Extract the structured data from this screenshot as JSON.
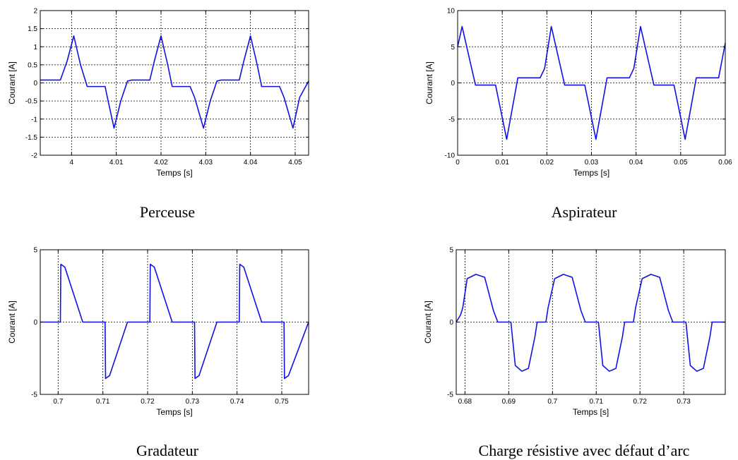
{
  "chart_data": [
    {
      "type": "line",
      "caption": "Perceuse",
      "xlabel": "Temps [s]",
      "ylabel": "Courant [A]",
      "xlim": [
        3.993,
        4.053
      ],
      "ylim": [
        -2,
        2
      ],
      "xticks": [
        4,
        4.01,
        4.02,
        4.03,
        4.04,
        4.05
      ],
      "xtick_labels": [
        "4",
        "4.01",
        "4.02",
        "4.03",
        "4.04",
        "4.05"
      ],
      "yticks": [
        -2,
        -1.5,
        -1,
        -0.5,
        0,
        0.5,
        1,
        1.5,
        2
      ],
      "ytick_labels": [
        "-2",
        "-1.5",
        "-1",
        "-0.5",
        "0",
        "0.5",
        "1",
        "1.5",
        "2"
      ],
      "grid": true,
      "color": "#1010e8",
      "series": [
        {
          "x": [
            3.993,
            3.9975,
            3.999,
            4.0005,
            4.002,
            4.0035,
            4.0075,
            4.008,
            4.0095,
            4.011,
            4.0125,
            4.0135,
            4.0175,
            4.0185,
            4.02,
            4.0215,
            4.0225,
            4.0265,
            4.0275,
            4.0295,
            4.031,
            4.0325,
            4.0335,
            4.0375,
            4.0385,
            4.04,
            4.0415,
            4.0425,
            4.0465,
            4.0475,
            4.0495,
            4.051,
            4.053
          ],
          "y": [
            0.08,
            0.08,
            0.6,
            1.3,
            0.5,
            -0.1,
            -0.1,
            -0.4,
            -1.25,
            -0.5,
            0.05,
            0.08,
            0.08,
            0.6,
            1.3,
            0.5,
            -0.1,
            -0.1,
            -0.4,
            -1.25,
            -0.5,
            0.05,
            0.08,
            0.08,
            0.6,
            1.3,
            0.5,
            -0.1,
            -0.1,
            -0.4,
            -1.25,
            -0.4,
            0.05
          ]
        }
      ]
    },
    {
      "type": "line",
      "caption": "Aspirateur",
      "xlabel": "Temps [s]",
      "ylabel": "Courant [A]",
      "xlim": [
        0,
        0.06
      ],
      "ylim": [
        -10,
        10
      ],
      "xticks": [
        0,
        0.01,
        0.02,
        0.03,
        0.04,
        0.05,
        0.06
      ],
      "xtick_labels": [
        "0",
        "0.01",
        "0.02",
        "0.03",
        "0.04",
        "0.05",
        "0.06"
      ],
      "yticks": [
        -10,
        -5,
        0,
        5,
        10
      ],
      "ytick_labels": [
        "-10",
        "-5",
        "0",
        "5",
        "10"
      ],
      "grid": true,
      "color": "#1010e8",
      "series": [
        {
          "x": [
            0,
            0.001,
            0.004,
            0.0045,
            0.0075,
            0.0085,
            0.011,
            0.0135,
            0.0145,
            0.0185,
            0.0195,
            0.021,
            0.024,
            0.0245,
            0.0275,
            0.0285,
            0.031,
            0.0335,
            0.0345,
            0.0385,
            0.0395,
            0.041,
            0.044,
            0.0445,
            0.0475,
            0.0485,
            0.051,
            0.0535,
            0.0545,
            0.0585,
            0.06
          ],
          "y": [
            5,
            7.8,
            -0.3,
            -0.3,
            -0.3,
            -0.3,
            -7.8,
            0.7,
            0.7,
            0.7,
            2,
            7.8,
            -0.3,
            -0.3,
            -0.3,
            -0.3,
            -7.8,
            0.7,
            0.7,
            0.7,
            2,
            7.8,
            -0.3,
            -0.3,
            -0.3,
            -0.3,
            -7.8,
            0.7,
            0.7,
            0.7,
            5.5
          ]
        }
      ]
    },
    {
      "type": "line",
      "caption": "Gradateur",
      "xlabel": "Temps [s]",
      "ylabel": "Courant [A]",
      "xlim": [
        0.696,
        0.756
      ],
      "ylim": [
        -5,
        5
      ],
      "xticks": [
        0.7,
        0.71,
        0.72,
        0.73,
        0.74,
        0.75
      ],
      "xtick_labels": [
        "0.7",
        "0.71",
        "0.72",
        "0.73",
        "0.74",
        "0.75"
      ],
      "yticks": [
        -5,
        0,
        5
      ],
      "ytick_labels": [
        "-5",
        "0",
        "5"
      ],
      "grid": true,
      "color": "#1010e8",
      "series": [
        {
          "x": [
            0.696,
            0.7005,
            0.7006,
            0.7015,
            0.7055,
            0.7075,
            0.7105,
            0.7106,
            0.7115,
            0.7155,
            0.7175,
            0.7205,
            0.7206,
            0.7215,
            0.7255,
            0.7275,
            0.7305,
            0.7306,
            0.7315,
            0.7355,
            0.7375,
            0.7405,
            0.7406,
            0.7415,
            0.7455,
            0.7475,
            0.7505,
            0.7506,
            0.7515,
            0.756
          ],
          "y": [
            0,
            0,
            4,
            3.8,
            0,
            0,
            0,
            -3.9,
            -3.7,
            0,
            0,
            0,
            4,
            3.8,
            0,
            0,
            0,
            -3.9,
            -3.7,
            0,
            0,
            0,
            4,
            3.8,
            0,
            0,
            0,
            -3.9,
            -3.7,
            0
          ]
        }
      ]
    },
    {
      "type": "line",
      "caption": "Charge résistive avec défaut d’arc",
      "xlabel": "Temps [s]",
      "ylabel": "Courant [A]",
      "xlim": [
        0.678,
        0.7395
      ],
      "ylim": [
        -5,
        5
      ],
      "xticks": [
        0.68,
        0.69,
        0.7,
        0.71,
        0.72,
        0.73
      ],
      "xtick_labels": [
        "0.68",
        "0.69",
        "0.7",
        "0.71",
        "0.72",
        "0.73"
      ],
      "yticks": [
        -5,
        0,
        5
      ],
      "ytick_labels": [
        "-5",
        "0",
        "5"
      ],
      "grid": true,
      "color": "#1010e8",
      "series": [
        {
          "x": [
            0.678,
            0.679,
            0.6795,
            0.6805,
            0.6825,
            0.6845,
            0.6865,
            0.6875,
            0.6905,
            0.6915,
            0.693,
            0.6945,
            0.696,
            0.6965,
            0.6985,
            0.699,
            0.7005,
            0.7025,
            0.7045,
            0.7065,
            0.7075,
            0.7105,
            0.7115,
            0.713,
            0.7145,
            0.716,
            0.7165,
            0.7185,
            0.719,
            0.7205,
            0.7225,
            0.7245,
            0.7265,
            0.7275,
            0.7305,
            0.7315,
            0.733,
            0.7345,
            0.736,
            0.7365,
            0.7395
          ],
          "y": [
            0,
            0.5,
            1,
            3,
            3.3,
            3.1,
            0.8,
            0,
            0,
            -3,
            -3.4,
            -3.2,
            -1,
            0,
            0,
            1,
            3,
            3.3,
            3.1,
            0.8,
            0,
            0,
            -3,
            -3.4,
            -3.2,
            -1,
            0,
            0,
            1,
            3,
            3.3,
            3.1,
            0.8,
            0,
            0,
            -3,
            -3.4,
            -3.2,
            -1,
            0,
            0
          ]
        }
      ]
    }
  ]
}
